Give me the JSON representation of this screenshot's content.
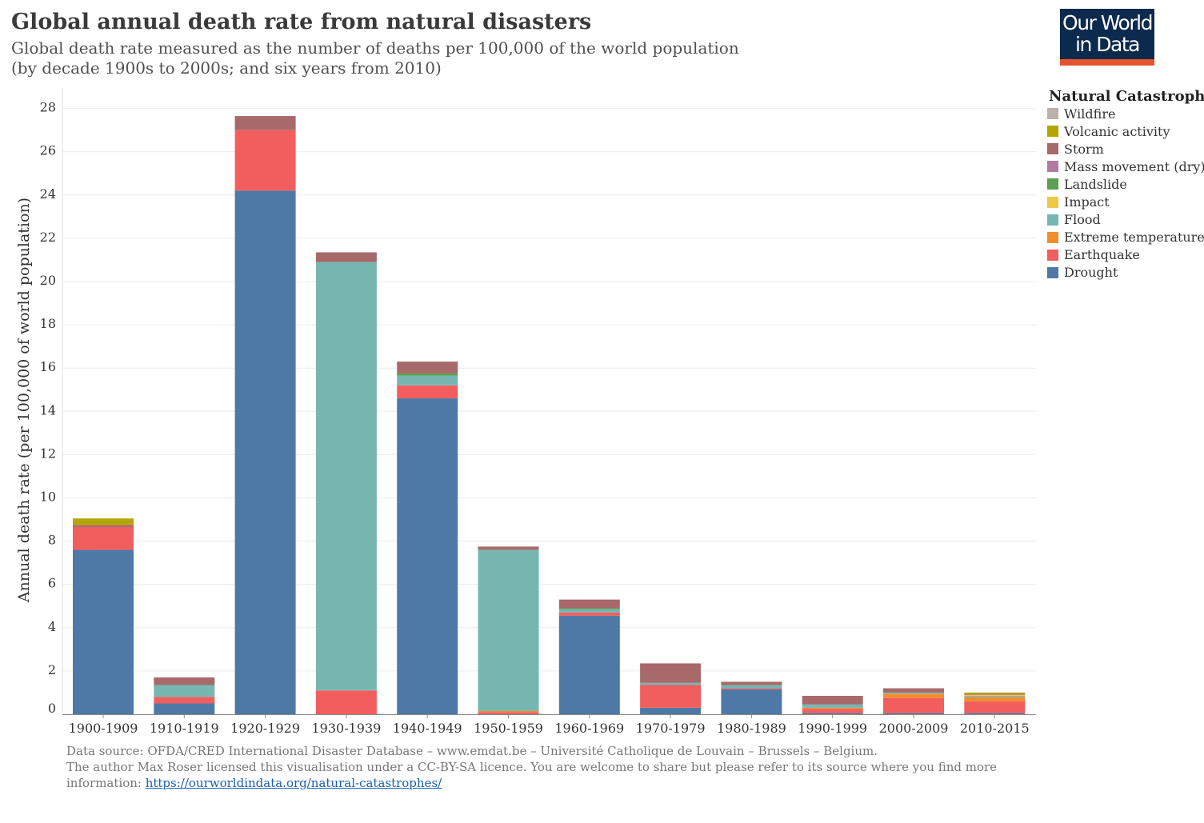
{
  "header": {
    "title": "Global annual death rate from natural disasters",
    "subtitle_line1": "Global death rate measured as the number of deaths per 100,000 of the world population",
    "subtitle_line2": "(by decade 1900s to 2000s; and six years from 2010)"
  },
  "logo": {
    "line1": "Our World",
    "line2": "in Data",
    "bg_color": "#0c2a4d",
    "accent_color": "#e5542b"
  },
  "legend": {
    "title": "Natural Catastrophe",
    "items": [
      {
        "label": "Wildfire",
        "color": "#bab0ac"
      },
      {
        "label": "Volcanic activity",
        "color": "#b3a600"
      },
      {
        "label": "Storm",
        "color": "#a8696b"
      },
      {
        "label": "Mass movement (dry)",
        "color": "#b07aa1"
      },
      {
        "label": "Landslide",
        "color": "#59a14f"
      },
      {
        "label": "Impact",
        "color": "#edc948"
      },
      {
        "label": "Flood",
        "color": "#76b7b2"
      },
      {
        "label": "Extreme temperature",
        "color": "#f28e2b"
      },
      {
        "label": "Earthquake",
        "color": "#f25e5e"
      },
      {
        "label": "Drought",
        "color": "#4e79a7"
      }
    ]
  },
  "footer": {
    "line1": "Data source: OFDA/CRED International Disaster Database – www.emdat.be – Université Catholique de Louvain – Brussels – Belgium.",
    "line2": "The author Max Roser licensed this visualisation under a CC-BY-SA licence. You are welcome to share but please refer to its source where you find more",
    "line3_prefix": "information: ",
    "link": "https://ourworldindata.org/natural-catastrophes/"
  },
  "chart_data": {
    "type": "bar",
    "stacked": true,
    "title": "Global annual death rate from natural disasters",
    "ylabel": "Annual death rate (per 100,000 of world population)",
    "xlabel": "",
    "ylim": [
      0,
      28.5
    ],
    "yticks": [
      0,
      2,
      4,
      6,
      8,
      10,
      12,
      14,
      16,
      18,
      20,
      22,
      24,
      26,
      28
    ],
    "grid": true,
    "legend_position": "right",
    "categories": [
      "1900-1909",
      "1910-1919",
      "1920-1929",
      "1930-1939",
      "1940-1949",
      "1950-1959",
      "1960-1969",
      "1970-1979",
      "1980-1989",
      "1990-1999",
      "2000-2009",
      "2010-2015"
    ],
    "series": [
      {
        "name": "Drought",
        "values": [
          7.6,
          0.5,
          24.2,
          0.0,
          14.6,
          0.0,
          4.55,
          0.3,
          1.15,
          0.05,
          0.05,
          0.05
        ]
      },
      {
        "name": "Earthquake",
        "values": [
          1.05,
          0.3,
          2.8,
          1.1,
          0.6,
          0.1,
          0.15,
          1.05,
          0.05,
          0.2,
          0.7,
          0.55
        ]
      },
      {
        "name": "Extreme temperature",
        "values": [
          0.0,
          0.0,
          0.0,
          0.0,
          0.0,
          0.05,
          0.0,
          0.0,
          0.0,
          0.05,
          0.2,
          0.2
        ]
      },
      {
        "name": "Flood",
        "values": [
          0.0,
          0.55,
          0.0,
          19.8,
          0.45,
          7.45,
          0.15,
          0.1,
          0.15,
          0.15,
          0.05,
          0.05
        ]
      },
      {
        "name": "Impact",
        "values": [
          0.0,
          0.0,
          0.0,
          0.0,
          0.0,
          0.0,
          0.0,
          0.0,
          0.0,
          0.0,
          0.0,
          0.05
        ]
      },
      {
        "name": "Landslide",
        "values": [
          0.0,
          0.0,
          0.0,
          0.0,
          0.1,
          0.0,
          0.05,
          0.0,
          0.0,
          0.0,
          0.0,
          0.0
        ]
      },
      {
        "name": "Mass movement (dry)",
        "values": [
          0.0,
          0.0,
          0.0,
          0.0,
          0.0,
          0.0,
          0.0,
          0.0,
          0.0,
          0.0,
          0.0,
          0.0
        ]
      },
      {
        "name": "Storm",
        "values": [
          0.1,
          0.35,
          0.65,
          0.45,
          0.55,
          0.15,
          0.4,
          0.9,
          0.15,
          0.4,
          0.2,
          0.05
        ]
      },
      {
        "name": "Volcanic activity",
        "values": [
          0.3,
          0.0,
          0.0,
          0.0,
          0.0,
          0.0,
          0.0,
          0.0,
          0.0,
          0.0,
          0.0,
          0.05
        ]
      },
      {
        "name": "Wildfire",
        "values": [
          0.0,
          0.0,
          0.0,
          0.0,
          0.0,
          0.0,
          0.0,
          0.0,
          0.0,
          0.0,
          0.0,
          0.0
        ]
      }
    ]
  }
}
